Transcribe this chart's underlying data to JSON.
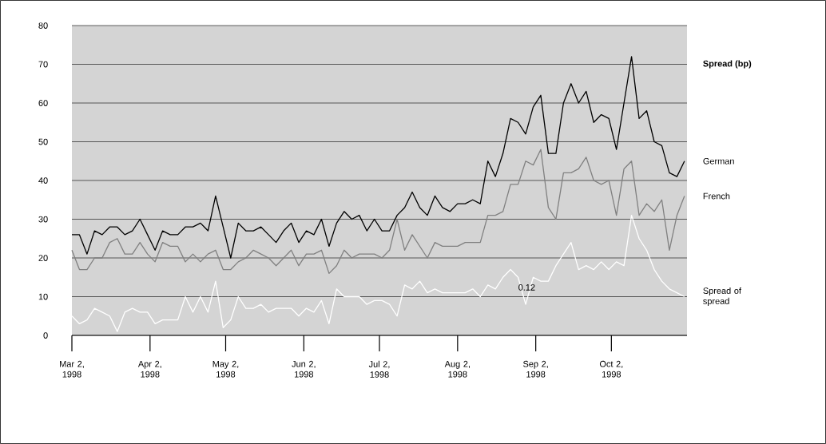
{
  "chart_data": {
    "type": "line",
    "ylabel": "Spread (bp)",
    "marker": "none",
    "grid": "y",
    "x": [
      "1998-03-02",
      "1998-03-05",
      "1998-03-08",
      "1998-03-11",
      "1998-03-14",
      "1998-03-17",
      "1998-03-20",
      "1998-03-23",
      "1998-03-26",
      "1998-03-29",
      "1998-04-01",
      "1998-04-04",
      "1998-04-07",
      "1998-04-10",
      "1998-04-13",
      "1998-04-16",
      "1998-04-19",
      "1998-04-22",
      "1998-04-25",
      "1998-04-28",
      "1998-05-01",
      "1998-05-04",
      "1998-05-07",
      "1998-05-10",
      "1998-05-13",
      "1998-05-16",
      "1998-05-19",
      "1998-05-22",
      "1998-05-25",
      "1998-05-28",
      "1998-05-31",
      "1998-06-03",
      "1998-06-06",
      "1998-06-09",
      "1998-06-12",
      "1998-06-15",
      "1998-06-18",
      "1998-06-21",
      "1998-06-24",
      "1998-06-27",
      "1998-06-30",
      "1998-07-03",
      "1998-07-06",
      "1998-07-09",
      "1998-07-12",
      "1998-07-15",
      "1998-07-18",
      "1998-07-21",
      "1998-07-24",
      "1998-07-27",
      "1998-07-30",
      "1998-08-02",
      "1998-08-05",
      "1998-08-08",
      "1998-08-11",
      "1998-08-14",
      "1998-08-17",
      "1998-08-20",
      "1998-08-23",
      "1998-08-26",
      "1998-08-29",
      "1998-09-01",
      "1998-09-04",
      "1998-09-07",
      "1998-09-10",
      "1998-09-13",
      "1998-09-16",
      "1998-09-19",
      "1998-09-22",
      "1998-09-25",
      "1998-09-28",
      "1998-10-01",
      "1998-10-04",
      "1998-10-07",
      "1998-10-10",
      "1998-10-13",
      "1998-10-16",
      "1998-10-19",
      "1998-10-22",
      "1998-10-25",
      "1998-10-28",
      "1998-10-31"
    ],
    "xlim": [
      "1998-03-02",
      "1998-11-01"
    ],
    "xticks": [
      {
        "value": "1998-03-02",
        "label": "Mar 2, 1998"
      },
      {
        "value": "1998-04-02",
        "label": "Apr 2, 1998"
      },
      {
        "value": "1998-05-02",
        "label": "May 2, 1998"
      },
      {
        "value": "1998-06-02",
        "label": "Jun 2, 1998"
      },
      {
        "value": "1998-07-02",
        "label": "Jul 2, 1998"
      },
      {
        "value": "1998-08-02",
        "label": "Aug 2, 1998"
      },
      {
        "value": "1998-09-02",
        "label": "Sep 2, 1998"
      },
      {
        "value": "1998-10-02",
        "label": "Oct 2, 1998"
      }
    ],
    "ylim": [
      0,
      80
    ],
    "yticks": [
      0,
      10,
      20,
      30,
      40,
      50,
      60,
      70,
      80
    ],
    "series": [
      {
        "name": "German",
        "color": "#000000",
        "values": [
          26,
          26,
          21,
          27,
          26,
          28,
          28,
          26,
          27,
          30,
          26,
          22,
          27,
          26,
          26,
          28,
          28,
          29,
          27,
          36,
          28,
          20,
          29,
          27,
          27,
          28,
          26,
          24,
          27,
          29,
          24,
          27,
          26,
          30,
          23,
          29,
          32,
          30,
          31,
          27,
          30,
          27,
          27,
          31,
          33,
          37,
          33,
          31,
          36,
          33,
          32,
          34,
          34,
          35,
          34,
          45,
          41,
          47,
          56,
          55,
          52,
          59,
          62,
          47,
          47,
          60,
          65,
          60,
          63,
          55,
          57,
          56,
          48,
          60,
          72,
          56,
          58,
          50,
          49,
          42,
          41,
          45
        ]
      },
      {
        "name": "French",
        "color": "#808080",
        "values": [
          22,
          17,
          17,
          20,
          20,
          24,
          25,
          21,
          21,
          24,
          21,
          19,
          24,
          23,
          23,
          19,
          21,
          19,
          21,
          22,
          17,
          17,
          19,
          20,
          22,
          21,
          20,
          18,
          20,
          22,
          18,
          21,
          21,
          22,
          16,
          18,
          22,
          20,
          21,
          21,
          21,
          20,
          22,
          30,
          22,
          26,
          23,
          20,
          24,
          23,
          23,
          23,
          24,
          24,
          24,
          31,
          31,
          32,
          39,
          39,
          45,
          44,
          48,
          33,
          30,
          42,
          42,
          43,
          46,
          40,
          39,
          40,
          31,
          43,
          45,
          31,
          34,
          32,
          35,
          22,
          31,
          36
        ]
      },
      {
        "name": "Spread of spread",
        "color": "#ffffff",
        "values": [
          5,
          3,
          4,
          7,
          6,
          5,
          1,
          6,
          7,
          6,
          6,
          3,
          4,
          4,
          4,
          10,
          6,
          10,
          6,
          14,
          2,
          4,
          10,
          7,
          7,
          8,
          6,
          7,
          7,
          7,
          5,
          7,
          6,
          9,
          3,
          12,
          10,
          10,
          10,
          8,
          9,
          9,
          8,
          5,
          13,
          12,
          14,
          11,
          12,
          11,
          11,
          11,
          11,
          12,
          10,
          13,
          12,
          15,
          17,
          15,
          8,
          15,
          14,
          14,
          18,
          21,
          24,
          17,
          18,
          17,
          19,
          17,
          19,
          18,
          31,
          25,
          22,
          17,
          14,
          12,
          11,
          10
        ]
      }
    ],
    "annotations": [
      "0.12"
    ]
  }
}
